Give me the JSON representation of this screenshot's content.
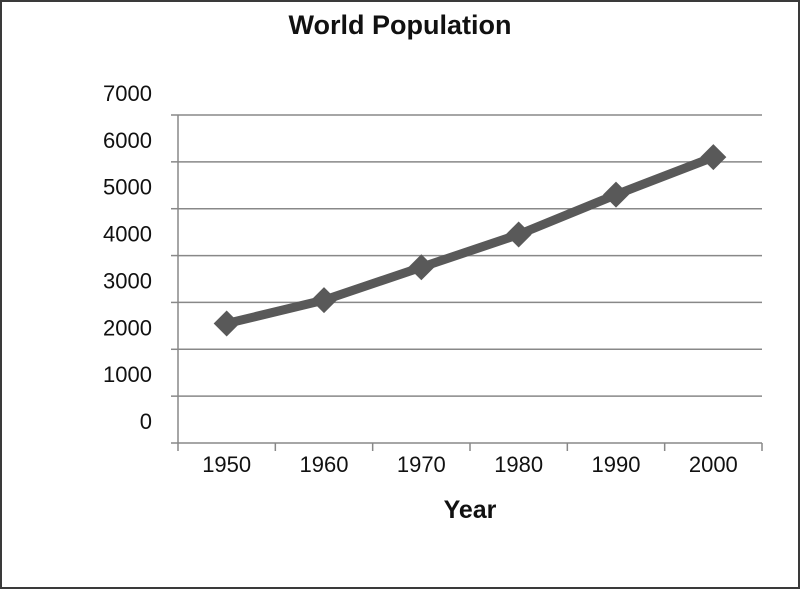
{
  "chart_data": {
    "type": "line",
    "title": "World Population",
    "xlabel": "Year",
    "ylabel": "",
    "categories": [
      "1950",
      "1960",
      "1970",
      "1980",
      "1990",
      "2000"
    ],
    "series": [
      {
        "values": [
          2550,
          3050,
          3750,
          4450,
          5300,
          6100
        ]
      }
    ],
    "ylim": [
      0,
      7000
    ],
    "yticks": [
      "7000",
      "6000",
      "5000",
      "4000",
      "3000",
      "2000",
      "1000",
      "0"
    ],
    "grid": true,
    "legend": "none",
    "series_color": "#595959",
    "marker": "diamond"
  }
}
